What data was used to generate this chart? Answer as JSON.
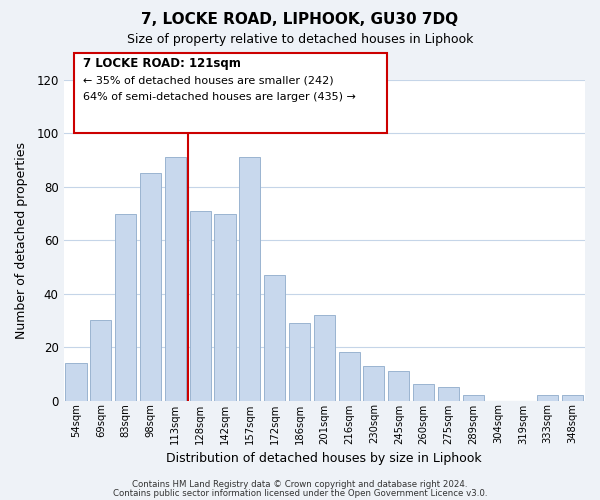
{
  "title": "7, LOCKE ROAD, LIPHOOK, GU30 7DQ",
  "subtitle": "Size of property relative to detached houses in Liphook",
  "xlabel": "Distribution of detached houses by size in Liphook",
  "ylabel": "Number of detached properties",
  "bar_labels": [
    "54sqm",
    "69sqm",
    "83sqm",
    "98sqm",
    "113sqm",
    "128sqm",
    "142sqm",
    "157sqm",
    "172sqm",
    "186sqm",
    "201sqm",
    "216sqm",
    "230sqm",
    "245sqm",
    "260sqm",
    "275sqm",
    "289sqm",
    "304sqm",
    "319sqm",
    "333sqm",
    "348sqm"
  ],
  "bar_values": [
    14,
    30,
    70,
    85,
    91,
    71,
    70,
    91,
    47,
    29,
    32,
    18,
    13,
    11,
    6,
    5,
    2,
    0,
    0,
    2,
    2
  ],
  "bar_color": "#c8d8ed",
  "bar_edge_color": "#9ab4d0",
  "vline_bar_index": 5,
  "vline_color": "#cc0000",
  "ylim": [
    0,
    120
  ],
  "yticks": [
    0,
    20,
    40,
    60,
    80,
    100,
    120
  ],
  "annotation_title": "7 LOCKE ROAD: 121sqm",
  "annotation_line1": "← 35% of detached houses are smaller (242)",
  "annotation_line2": "64% of semi-detached houses are larger (435) →",
  "footer1": "Contains HM Land Registry data © Crown copyright and database right 2024.",
  "footer2": "Contains public sector information licensed under the Open Government Licence v3.0.",
  "background_color": "#eef2f7",
  "plot_background": "#ffffff",
  "grid_color": "#c5d5e8"
}
